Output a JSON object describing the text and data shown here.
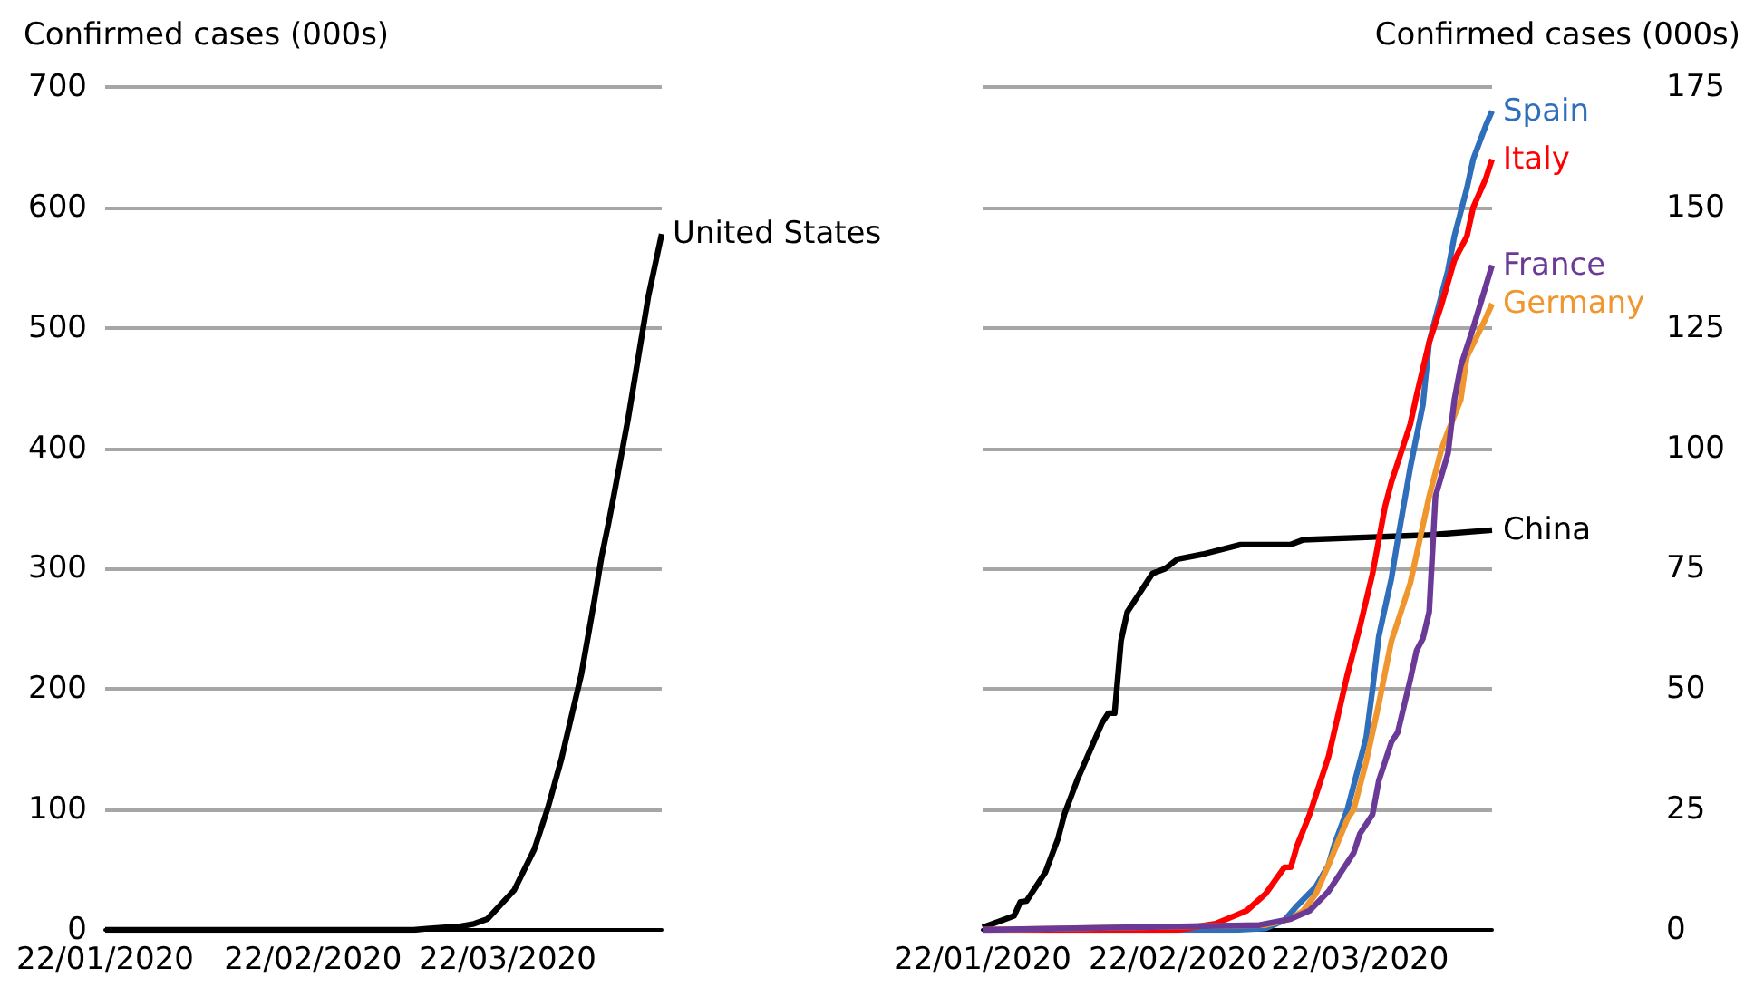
{
  "chart_data": [
    {
      "type": "line",
      "ylabel": "Confirmed cases (000s)",
      "xlim": [
        "2020-01-22",
        "2020-04-14"
      ],
      "xticks": [
        {
          "value": "2020-01-22",
          "label": "22/01/2020"
        },
        {
          "value": "2020-02-22",
          "label": "22/02/2020"
        },
        {
          "value": "2020-03-22",
          "label": "22/03/2020"
        }
      ],
      "ylim": [
        0,
        700
      ],
      "yticks": [
        0,
        100,
        200,
        300,
        400,
        500,
        600,
        700
      ],
      "grid": "y",
      "marker": "none",
      "series": [
        {
          "name": "United States",
          "color": "#000000",
          "x": [
            "2020-01-22",
            "2020-03-08",
            "2020-03-10",
            "2020-03-15",
            "2020-03-17",
            "2020-03-19",
            "2020-03-23",
            "2020-03-26",
            "2020-03-28",
            "2020-03-30",
            "2020-04-02",
            "2020-04-04",
            "2020-04-05",
            "2020-04-06",
            "2020-04-07",
            "2020-04-09",
            "2020-04-12",
            "2020-04-14"
          ],
          "values": [
            0,
            0,
            1,
            3,
            5,
            9,
            33,
            67,
            101,
            141,
            212,
            275,
            309,
            336,
            365,
            425,
            526,
            578
          ]
        }
      ]
    },
    {
      "type": "line",
      "y2label": "Confirmed cases (000s)",
      "xlim": [
        "2020-01-22",
        "2020-04-12"
      ],
      "xticks": [
        {
          "value": "2020-01-22",
          "label": "22/01/2020"
        },
        {
          "value": "2020-02-22",
          "label": "22/02/2020"
        },
        {
          "value": "2020-03-22",
          "label": "22/03/2020"
        }
      ],
      "y2lim": [
        0,
        175
      ],
      "y2ticks": [
        0,
        25,
        50,
        75,
        100,
        125,
        150,
        175
      ],
      "grid": "y",
      "marker": "none",
      "series": [
        {
          "name": "China",
          "color": "#000000",
          "axis": "y2",
          "x": [
            "2020-01-22",
            "2020-01-27",
            "2020-01-28",
            "2020-01-29",
            "2020-02-01",
            "2020-02-03",
            "2020-02-04",
            "2020-02-06",
            "2020-02-08",
            "2020-02-10",
            "2020-02-11",
            "2020-02-12",
            "2020-02-13",
            "2020-02-14",
            "2020-02-18",
            "2020-02-20",
            "2020-02-22",
            "2020-02-26",
            "2020-03-03",
            "2020-03-11",
            "2020-03-13",
            "2020-04-02",
            "2020-04-12"
          ],
          "values": [
            0.5,
            2.9,
            5.8,
            6,
            12,
            19,
            24,
            31,
            37,
            43,
            45,
            45,
            60,
            66,
            74,
            75,
            77,
            78,
            80,
            80,
            81,
            82,
            83
          ]
        },
        {
          "name": "Spain",
          "color": "#2f6eba",
          "axis": "y2",
          "x": [
            "2020-01-22",
            "2020-03-02",
            "2020-03-07",
            "2020-03-10",
            "2020-03-12",
            "2020-03-15",
            "2020-03-17",
            "2020-03-18",
            "2020-03-20",
            "2020-03-22",
            "2020-03-23",
            "2020-03-24",
            "2020-03-25",
            "2020-03-27",
            "2020-03-28",
            "2020-03-30",
            "2020-04-01",
            "2020-04-02",
            "2020-04-04",
            "2020-04-05",
            "2020-04-06",
            "2020-04-08",
            "2020-04-09",
            "2020-04-11",
            "2020-04-12"
          ],
          "values": [
            0,
            0,
            0.3,
            2,
            5,
            9,
            13.5,
            18,
            25,
            35,
            40,
            50,
            61,
            73,
            81,
            96,
            109,
            122,
            132,
            137,
            144,
            154,
            160,
            167,
            170
          ]
        },
        {
          "name": "Italy",
          "color": "#ff0000",
          "axis": "y2",
          "x": [
            "2020-01-22",
            "2020-02-22",
            "2020-02-28",
            "2020-03-02",
            "2020-03-04",
            "2020-03-07",
            "2020-03-10",
            "2020-03-11",
            "2020-03-12",
            "2020-03-14",
            "2020-03-17",
            "2020-03-20",
            "2020-03-22",
            "2020-03-24",
            "2020-03-26",
            "2020-03-27",
            "2020-03-29",
            "2020-03-30",
            "2020-03-31",
            "2020-04-02",
            "2020-04-04",
            "2020-04-06",
            "2020-04-08",
            "2020-04-09",
            "2020-04-11",
            "2020-04-12"
          ],
          "values": [
            0,
            0,
            1.3,
            2.9,
            4,
            7.5,
            13,
            13,
            17.5,
            24,
            36,
            53,
            63,
            74,
            88,
            93,
            101,
            105,
            111,
            122,
            130,
            139,
            144,
            150,
            156,
            160
          ]
        },
        {
          "name": "Germany",
          "color": "#f0962e",
          "axis": "y2",
          "x": [
            "2020-01-22",
            "2020-03-07",
            "2020-03-11",
            "2020-03-13",
            "2020-03-15",
            "2020-03-17",
            "2020-03-20",
            "2020-03-21",
            "2020-03-23",
            "2020-03-25",
            "2020-03-27",
            "2020-03-30",
            "2020-04-02",
            "2020-04-04",
            "2020-04-05",
            "2020-04-07",
            "2020-04-08",
            "2020-04-11",
            "2020-04-12"
          ],
          "values": [
            0,
            1,
            2.3,
            4,
            7.5,
            13.5,
            23,
            25,
            35,
            47,
            60,
            72,
            90,
            100,
            103.5,
            110,
            119,
            127,
            130
          ]
        },
        {
          "name": "France",
          "color": "#6b3a96",
          "axis": "y2",
          "x": [
            "2020-01-22",
            "2020-03-06",
            "2020-03-11",
            "2020-03-14",
            "2020-03-17",
            "2020-03-19",
            "2020-03-21",
            "2020-03-22",
            "2020-03-24",
            "2020-03-25",
            "2020-03-27",
            "2020-03-28",
            "2020-03-30",
            "2020-03-31",
            "2020-04-01",
            "2020-04-02",
            "2020-04-03",
            "2020-04-05",
            "2020-04-06",
            "2020-04-07",
            "2020-04-09",
            "2020-04-12"
          ],
          "values": [
            0,
            1,
            2.3,
            4,
            8,
            12,
            16,
            20,
            24,
            31,
            39,
            41,
            52,
            58,
            60.5,
            66,
            90,
            99,
            110,
            117,
            125,
            138
          ]
        }
      ]
    }
  ]
}
